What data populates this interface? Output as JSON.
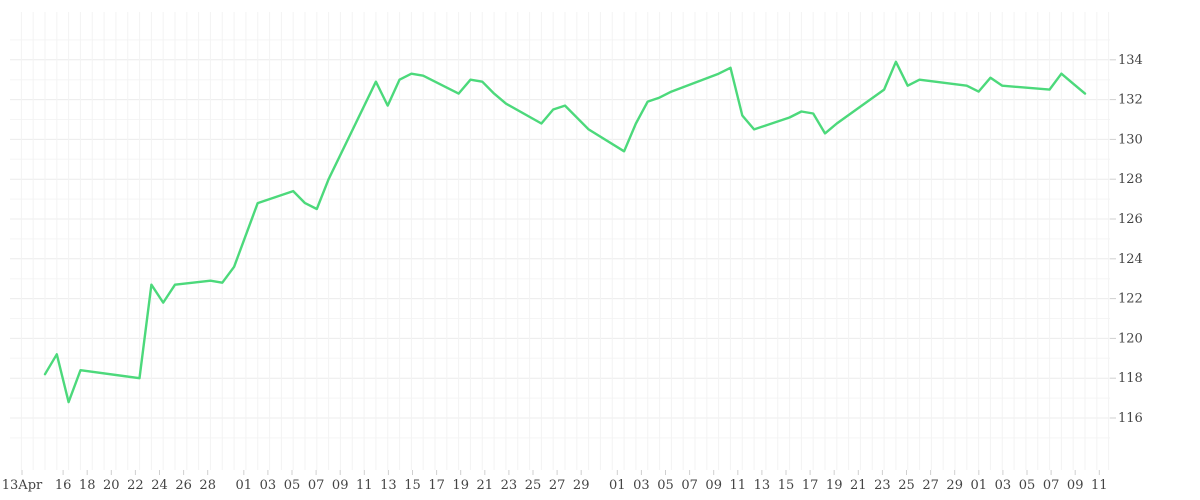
{
  "chart_data": {
    "type": "line",
    "title": "",
    "xlabel": "",
    "ylabel": "",
    "y_axis_position": "right",
    "grid": true,
    "ylim": [
      114,
      136
    ],
    "y_ticks": [
      "116",
      "118",
      "120",
      "122",
      "124",
      "126",
      "128",
      "130",
      "132",
      "134"
    ],
    "x_ticks": [
      {
        "label": "13",
        "month_label": "Apr"
      },
      {
        "label": "16"
      },
      {
        "label": "18"
      },
      {
        "label": "20"
      },
      {
        "label": "22"
      },
      {
        "label": "24"
      },
      {
        "label": "26"
      },
      {
        "label": "28"
      },
      {
        "label": "01"
      },
      {
        "label": "03"
      },
      {
        "label": "05"
      },
      {
        "label": "07"
      },
      {
        "label": "09"
      },
      {
        "label": "11"
      },
      {
        "label": "13"
      },
      {
        "label": "15"
      },
      {
        "label": "17"
      },
      {
        "label": "19"
      },
      {
        "label": "21"
      },
      {
        "label": "23"
      },
      {
        "label": "25"
      },
      {
        "label": "27"
      },
      {
        "label": "29"
      },
      {
        "label": "01"
      },
      {
        "label": "03"
      },
      {
        "label": "05"
      },
      {
        "label": "07"
      },
      {
        "label": "09"
      },
      {
        "label": "11"
      },
      {
        "label": "13"
      },
      {
        "label": "15"
      },
      {
        "label": "17"
      },
      {
        "label": "19"
      },
      {
        "label": "21"
      },
      {
        "label": "23"
      },
      {
        "label": "25"
      },
      {
        "label": "27"
      },
      {
        "label": "29"
      },
      {
        "label": "01"
      },
      {
        "label": "03"
      },
      {
        "label": "05"
      },
      {
        "label": "07"
      },
      {
        "label": "09"
      },
      {
        "label": "11"
      }
    ],
    "series": [
      {
        "color": "#4cd97b",
        "points": [
          [
            "2019-04-14",
            118.2
          ],
          [
            "2019-04-15",
            119.2
          ],
          [
            "2019-04-16",
            116.8
          ],
          [
            "2019-04-17",
            118.4
          ],
          [
            "2019-04-22",
            118.0
          ],
          [
            "2019-04-23",
            122.7
          ],
          [
            "2019-04-24",
            121.8
          ],
          [
            "2019-04-25",
            122.7
          ],
          [
            "2019-04-28",
            122.9
          ],
          [
            "2019-04-29",
            122.8
          ],
          [
            "2019-04-30",
            123.6
          ],
          [
            "2019-05-02",
            126.8
          ],
          [
            "2019-05-05",
            127.4
          ],
          [
            "2019-05-06",
            126.8
          ],
          [
            "2019-05-07",
            126.5
          ],
          [
            "2019-05-08",
            128.0
          ],
          [
            "2019-05-12",
            132.9
          ],
          [
            "2019-05-13",
            131.7
          ],
          [
            "2019-05-14",
            133.0
          ],
          [
            "2019-05-15",
            133.3
          ],
          [
            "2019-05-16",
            133.2
          ],
          [
            "2019-05-19",
            132.3
          ],
          [
            "2019-05-20",
            133.0
          ],
          [
            "2019-05-21",
            132.9
          ],
          [
            "2019-05-22",
            132.3
          ],
          [
            "2019-05-23",
            131.8
          ],
          [
            "2019-05-26",
            130.8
          ],
          [
            "2019-05-27",
            131.5
          ],
          [
            "2019-05-28",
            131.7
          ],
          [
            "2019-05-30",
            130.5
          ],
          [
            "2019-06-02",
            129.4
          ],
          [
            "2019-06-03",
            130.8
          ],
          [
            "2019-06-04",
            131.9
          ],
          [
            "2019-06-05",
            132.1
          ],
          [
            "2019-06-06",
            132.4
          ],
          [
            "2019-06-10",
            133.3
          ],
          [
            "2019-06-11",
            133.6
          ],
          [
            "2019-06-12",
            131.2
          ],
          [
            "2019-06-13",
            130.5
          ],
          [
            "2019-06-16",
            131.1
          ],
          [
            "2019-06-17",
            131.4
          ],
          [
            "2019-06-18",
            131.3
          ],
          [
            "2019-06-19",
            130.3
          ],
          [
            "2019-06-20",
            130.8
          ],
          [
            "2019-06-24",
            132.5
          ],
          [
            "2019-06-25",
            133.9
          ],
          [
            "2019-06-26",
            132.7
          ],
          [
            "2019-06-27",
            133.0
          ],
          [
            "2019-07-01",
            132.7
          ],
          [
            "2019-07-02",
            132.4
          ],
          [
            "2019-07-03",
            133.1
          ],
          [
            "2019-07-04",
            132.7
          ],
          [
            "2019-07-08",
            132.5
          ],
          [
            "2019-07-09",
            133.3
          ],
          [
            "2019-07-10",
            132.8
          ],
          [
            "2019-07-11",
            132.3
          ]
        ]
      }
    ]
  }
}
